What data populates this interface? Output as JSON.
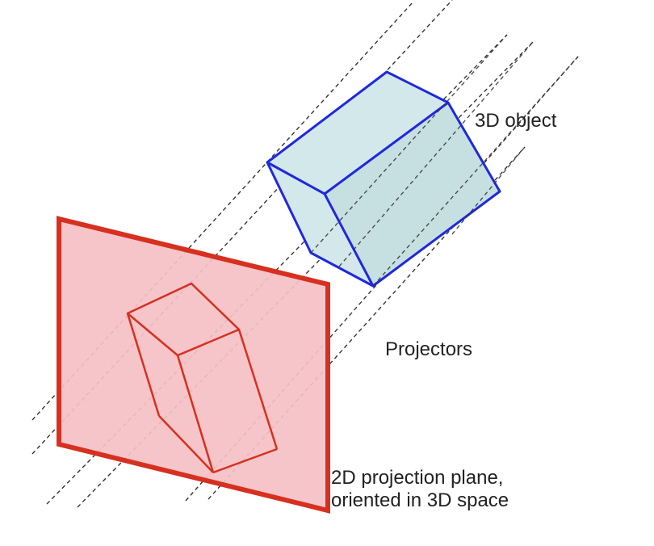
{
  "labels": {
    "object": "3D object",
    "projectors": "Projectors",
    "plane_line1": "2D projection plane,",
    "plane_line2": "oriented in 3D space"
  },
  "colors": {
    "plane_fill": "#f4c0c6",
    "plane_stroke": "#d7301f",
    "object_fill": "#d3e8ea",
    "object_stroke": "#1f28e0",
    "projector_stroke": "#333333",
    "text": "#222222"
  }
}
